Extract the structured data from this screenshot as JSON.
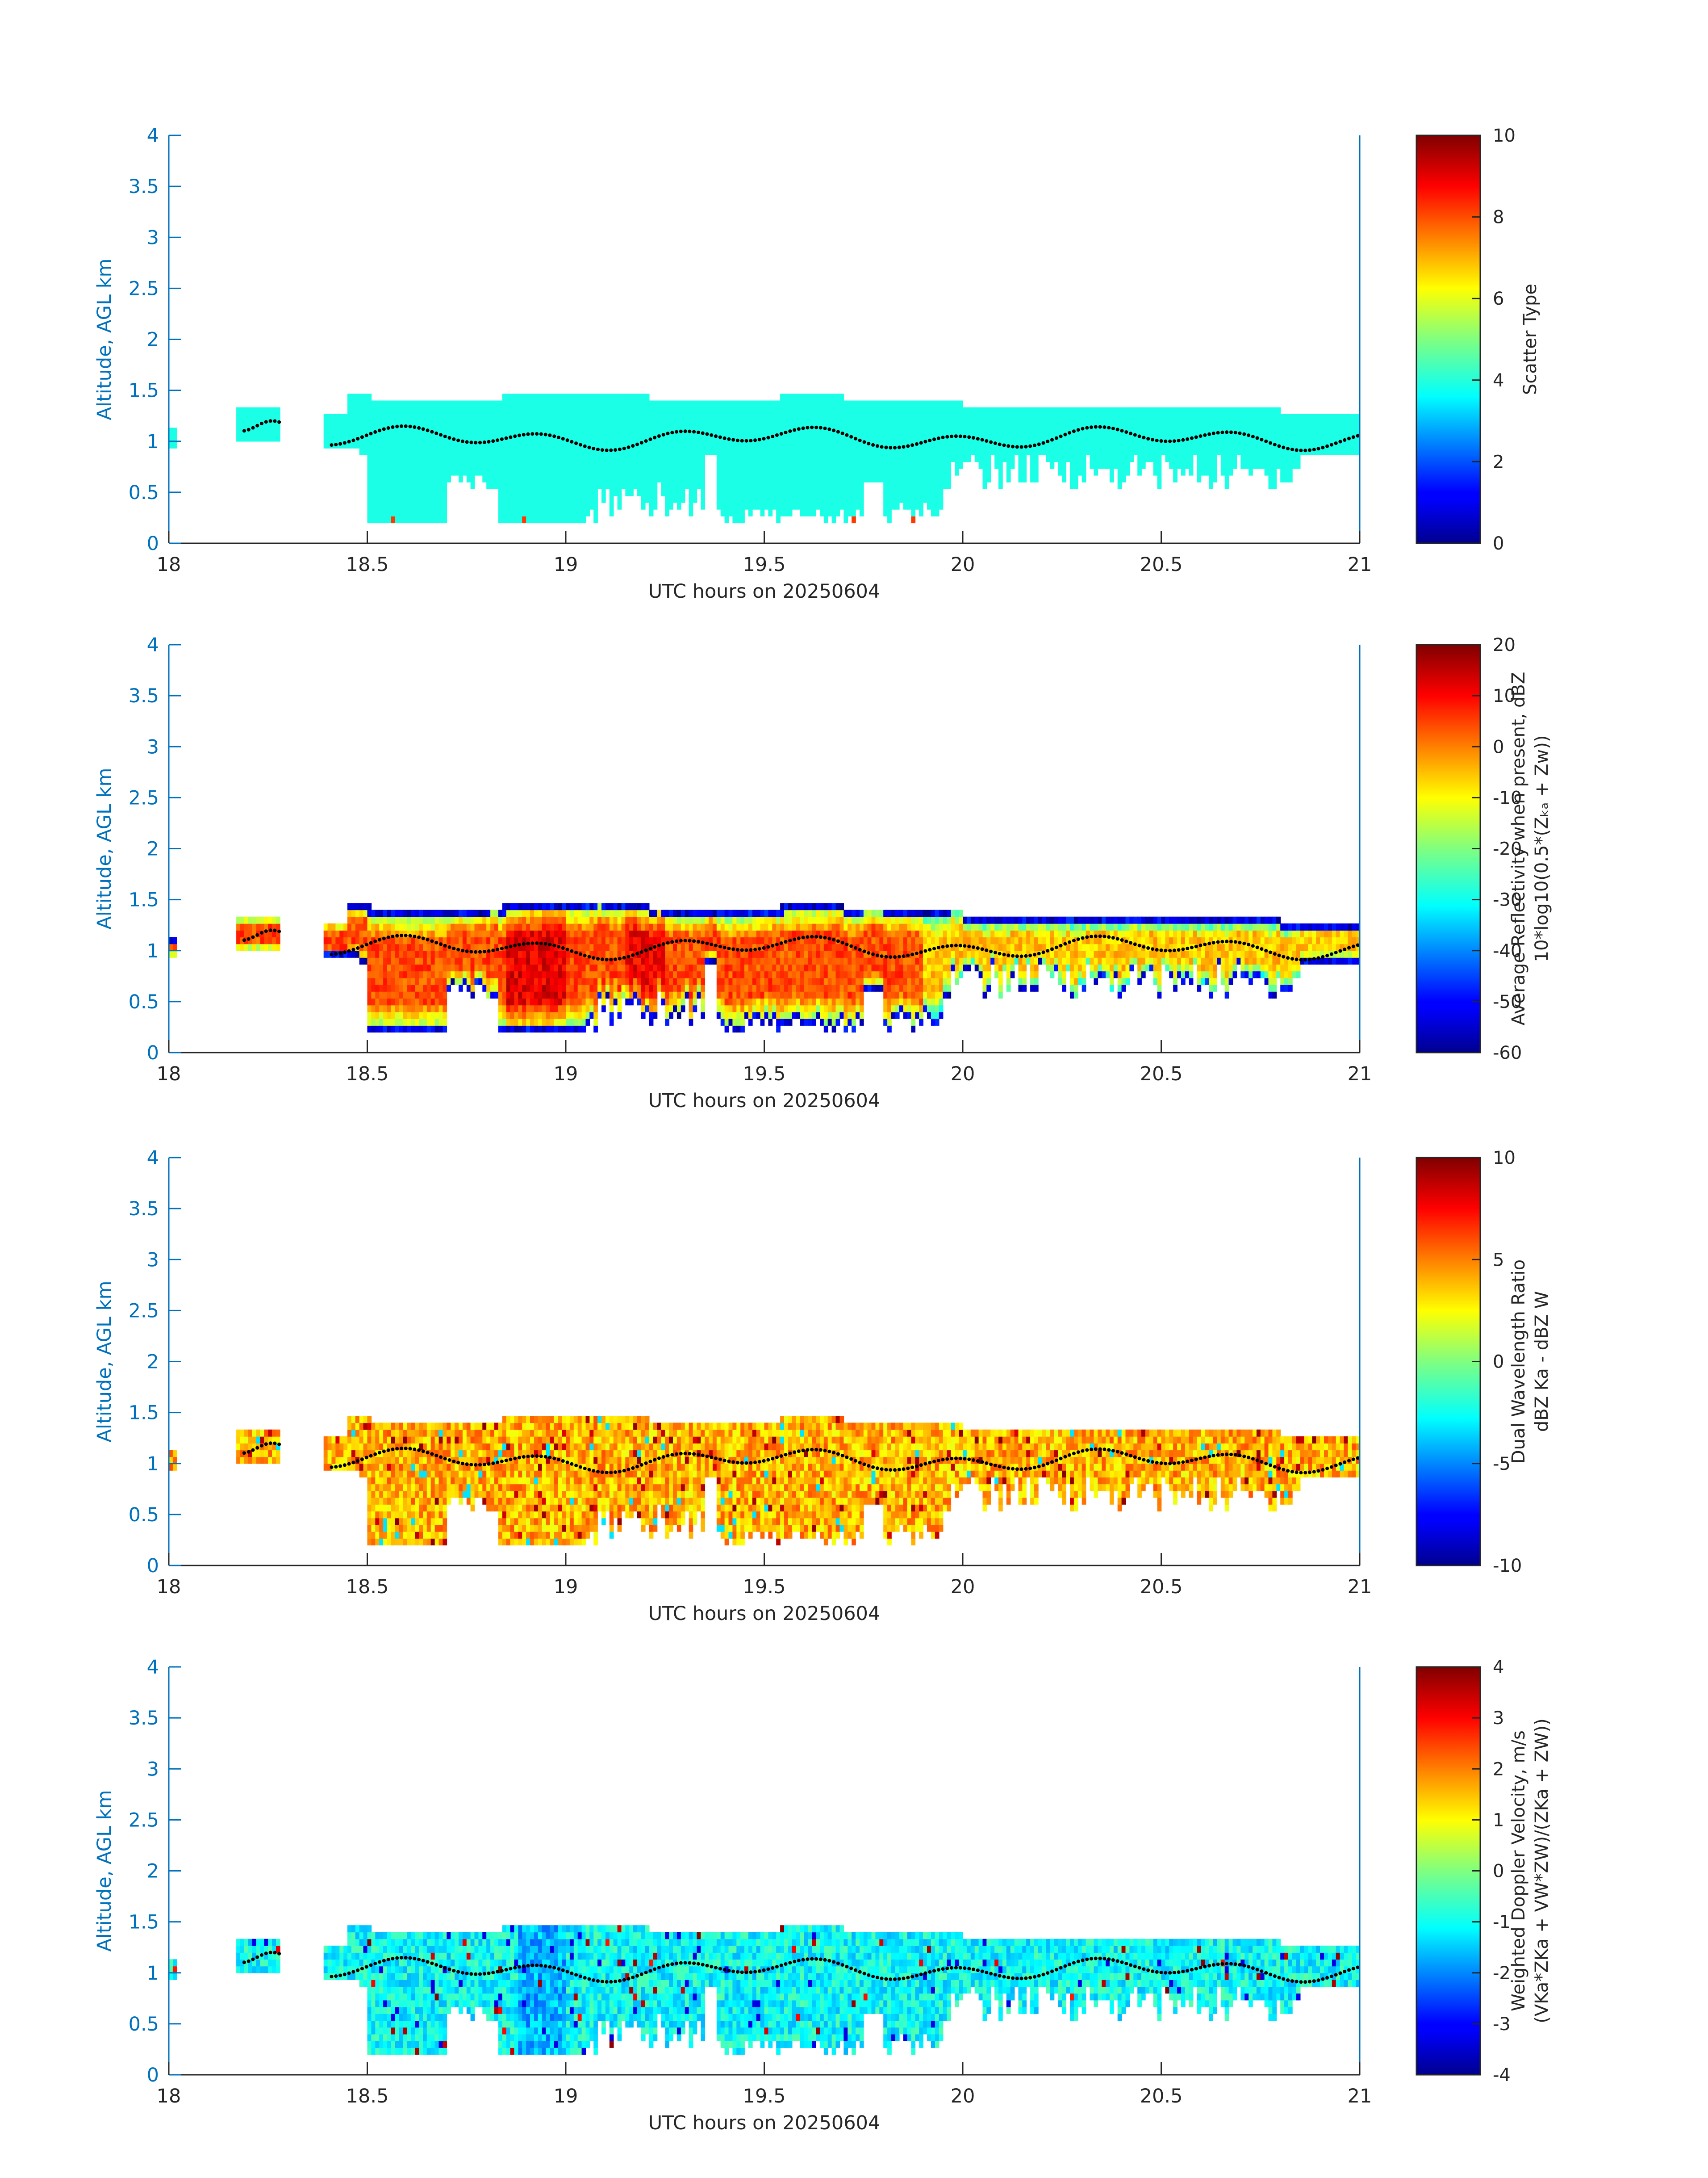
{
  "colors": {
    "axis_blue": "#0072bd",
    "text_dark": "#262626",
    "marker_dots": "#000000"
  },
  "chart_data": [
    {
      "type": "heatmap",
      "xlabel": "UTC hours on 20250604",
      "ylabel": "Altitude, AGL km",
      "xlim": [
        18,
        21
      ],
      "ylim": [
        0,
        4
      ],
      "xticks": [
        "18",
        "18.5",
        "19",
        "19.5",
        "20",
        "20.5",
        "21"
      ],
      "yticks": [
        "0",
        "0.5",
        "1",
        "1.5",
        "2",
        "2.5",
        "3",
        "3.5",
        "4"
      ],
      "colorbar": {
        "label_lines": [
          "Scatter Type"
        ],
        "range": [
          0,
          10
        ],
        "ticks": [
          "0",
          "2",
          "4",
          "6",
          "8",
          "10"
        ],
        "colormap": "jet"
      },
      "field": "scatter"
    },
    {
      "type": "heatmap",
      "xlabel": "UTC hours on 20250604",
      "ylabel": "Altitude, AGL km",
      "xlim": [
        18,
        21
      ],
      "ylim": [
        0,
        4
      ],
      "xticks": [
        "18",
        "18.5",
        "19",
        "19.5",
        "20",
        "20.5",
        "21"
      ],
      "yticks": [
        "0",
        "0.5",
        "1",
        "1.5",
        "2",
        "2.5",
        "3",
        "3.5",
        "4"
      ],
      "colorbar": {
        "label_lines": [
          "Average Reflectivity when present, dBZ",
          "10*log10(0.5*(Zₖₐ + Zw))"
        ],
        "range": [
          -60,
          20
        ],
        "ticks": [
          "-60",
          "-50",
          "-40",
          "-30",
          "-20",
          "-10",
          "0",
          "10",
          "20"
        ],
        "colormap": "jet"
      },
      "field": "reflectivity"
    },
    {
      "type": "heatmap",
      "xlabel": "UTC hours on 20250604",
      "ylabel": "Altitude, AGL km",
      "xlim": [
        18,
        21
      ],
      "ylim": [
        0,
        4
      ],
      "xticks": [
        "18",
        "18.5",
        "19",
        "19.5",
        "20",
        "20.5",
        "21"
      ],
      "yticks": [
        "0",
        "0.5",
        "1",
        "1.5",
        "2",
        "2.5",
        "3",
        "3.5",
        "4"
      ],
      "colorbar": {
        "label_lines": [
          "Dual Wavelength Ratio",
          "dBZ Ka - dBZ W"
        ],
        "range": [
          -10,
          10
        ],
        "ticks": [
          "-10",
          "-5",
          "0",
          "5",
          "10"
        ],
        "colormap": "jet"
      },
      "field": "dwr"
    },
    {
      "type": "heatmap",
      "xlabel": "UTC hours on 20250604",
      "ylabel": "Altitude, AGL km",
      "xlim": [
        18,
        21
      ],
      "ylim": [
        0,
        4
      ],
      "xticks": [
        "18",
        "18.5",
        "19",
        "19.5",
        "20",
        "20.5",
        "21"
      ],
      "yticks": [
        "0",
        "0.5",
        "1",
        "1.5",
        "2",
        "2.5",
        "3",
        "3.5",
        "4"
      ],
      "colorbar": {
        "label_lines": [
          "Weighted Doppler Velocity, m/s",
          "(VKa*ZKa + VW*ZW)/(ZKa + ZW))"
        ],
        "range": [
          -4,
          4
        ],
        "ticks": [
          "-4",
          "-3",
          "-2",
          "-1",
          "0",
          "1",
          "2",
          "3",
          "4"
        ],
        "colormap": "jet"
      },
      "field": "velocity"
    }
  ]
}
